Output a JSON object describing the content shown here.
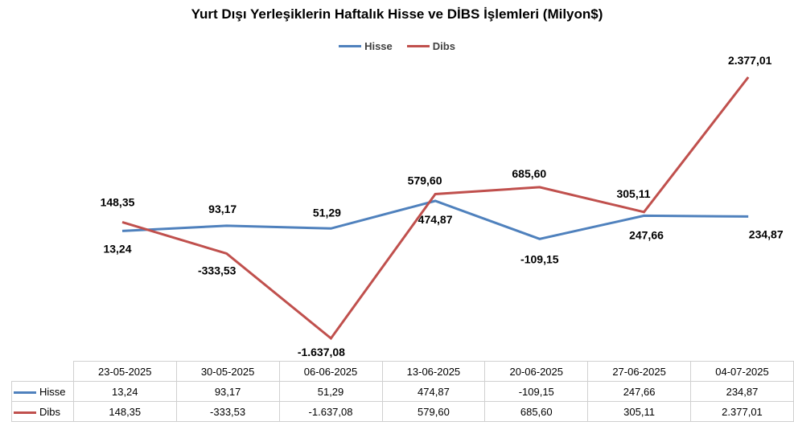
{
  "chart_data": {
    "type": "line",
    "title": "Yurt Dışı Yerleşiklerin Haftalık Hisse ve DİBS İşlemleri (Milyon$)",
    "categories": [
      "23-05-2025",
      "30-05-2025",
      "06-06-2025",
      "13-06-2025",
      "20-06-2025",
      "27-06-2025",
      "04-07-2025"
    ],
    "series": [
      {
        "name": "Hisse",
        "color": "#4F81BD",
        "values": [
          13.24,
          93.17,
          51.29,
          474.87,
          -109.15,
          247.66,
          234.87
        ],
        "labels": [
          "13,24",
          "93,17",
          "51,29",
          "474,87",
          "-109,15",
          "247,66",
          "234,87"
        ]
      },
      {
        "name": "Dibs",
        "color": "#C0504D",
        "values": [
          148.35,
          -333.53,
          -1637.08,
          579.6,
          685.6,
          305.11,
          2377.01
        ],
        "labels": [
          "148,35",
          "-333,53",
          "-1.637,08",
          "579,60",
          "685,60",
          "305,11",
          "2.377,01"
        ]
      }
    ],
    "legend_position": "top",
    "grid": false,
    "data_table": true
  }
}
